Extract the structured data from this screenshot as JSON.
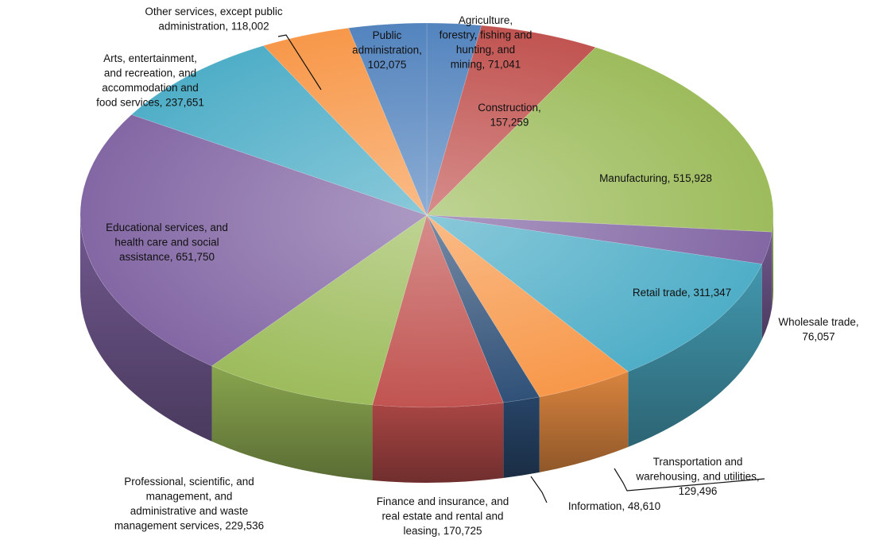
{
  "chart_data": {
    "type": "pie",
    "style": "3d-pie",
    "title": "",
    "slices": [
      {
        "label": "Agriculture, forestry, fishing and hunting, and mining",
        "value": 71041,
        "color": "#4f81bd",
        "label_lines": [
          "Agriculture,",
          "forestry, fishing and",
          "hunting, and",
          "mining, 71,041"
        ]
      },
      {
        "label": "Construction",
        "value": 157259,
        "color": "#c0504d",
        "label_lines": [
          "Construction,",
          "157,259"
        ]
      },
      {
        "label": "Manufacturing",
        "value": 515928,
        "color": "#9bbb59",
        "label_lines": [
          "Manufacturing, 515,928"
        ]
      },
      {
        "label": "Wholesale trade",
        "value": 76057,
        "color": "#8064a2",
        "label_lines": [
          "Wholesale trade,",
          "76,057"
        ]
      },
      {
        "label": "Retail trade",
        "value": 311347,
        "color": "#4bacc6",
        "label_lines": [
          "Retail trade, 311,347"
        ]
      },
      {
        "label": "Transportation and warehousing, and utilities",
        "value": 129496,
        "color": "#f79646",
        "label_lines": [
          "Transportation and",
          "warehousing, and utilities,",
          "129,496"
        ]
      },
      {
        "label": "Information",
        "value": 48610,
        "color": "#2c4d75",
        "label_lines": [
          "Information, 48,610"
        ]
      },
      {
        "label": "Finance and insurance, and real estate and rental and leasing",
        "value": 170725,
        "color": "#c0504d",
        "label_lines": [
          "Finance and insurance, and",
          "real estate and rental and",
          "leasing, 170,725"
        ]
      },
      {
        "label": "Professional, scientific, and management, and administrative and waste management services",
        "value": 229536,
        "color": "#9bbb59",
        "label_lines": [
          "Professional, scientific, and",
          "management, and",
          "administrative and waste",
          "management services, 229,536"
        ]
      },
      {
        "label": "Educational services, and health care and social assistance",
        "value": 651750,
        "color": "#8064a2",
        "label_lines": [
          "Educational services, and",
          "health care and social",
          "assistance, 651,750"
        ]
      },
      {
        "label": "Arts, entertainment, and recreation, and accommodation and food services",
        "value": 237651,
        "color": "#4bacc6",
        "label_lines": [
          "Arts, entertainment,",
          "and recreation, and",
          "accommodation and",
          "food services, 237,651"
        ]
      },
      {
        "label": "Other services, except public administration",
        "value": 118002,
        "color": "#f79646",
        "label_lines": [
          "Other services, except public",
          "administration, 118,002"
        ]
      },
      {
        "label": "Public administration",
        "value": 102075,
        "color": "#4f81bd",
        "label_lines": [
          "Public",
          "administration,",
          "102,075"
        ]
      }
    ]
  }
}
